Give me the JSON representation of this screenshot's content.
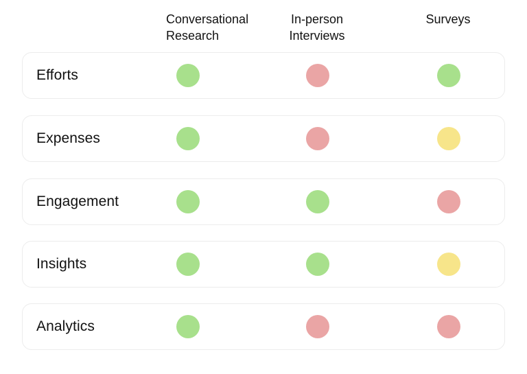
{
  "columns": [
    {
      "label": "Conversational\nResearch"
    },
    {
      "label": "In-person\nInterviews"
    },
    {
      "label": "Surveys"
    }
  ],
  "colors": {
    "green": "#a8e08c",
    "red": "#eaa5a5",
    "yellow": "#f7e58a"
  },
  "rows": [
    {
      "label": "Efforts",
      "ratings": [
        "green",
        "red",
        "green"
      ]
    },
    {
      "label": "Expenses",
      "ratings": [
        "green",
        "red",
        "yellow"
      ]
    },
    {
      "label": "Engagement",
      "ratings": [
        "green",
        "green",
        "red"
      ]
    },
    {
      "label": "Insights",
      "ratings": [
        "green",
        "green",
        "yellow"
      ]
    },
    {
      "label": "Analytics",
      "ratings": [
        "green",
        "red",
        "red"
      ]
    }
  ]
}
